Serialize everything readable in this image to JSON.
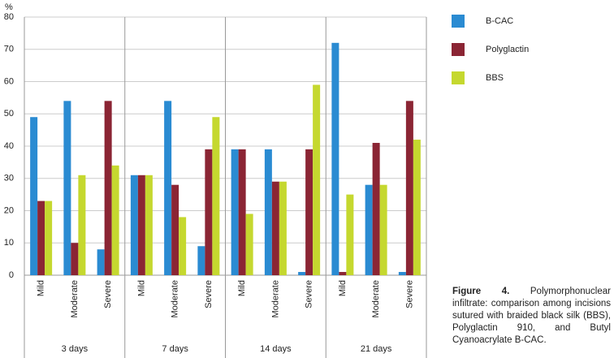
{
  "chart_data": {
    "type": "bar",
    "y_label": "%",
    "categories": [
      "Mild",
      "Moderate",
      "Severe",
      "Mild",
      "Moderate",
      "Severe",
      "Mild",
      "Moderate",
      "Severe",
      "Mild",
      "Moderate",
      "Severe"
    ],
    "groups": [
      "3 days",
      "7 days",
      "14 days",
      "21 days"
    ],
    "series": [
      {
        "name": "B-CAC",
        "color": "#2a8bd2",
        "values": [
          49,
          54,
          8,
          31,
          54,
          9,
          39,
          39,
          1,
          72,
          28,
          1
        ]
      },
      {
        "name": "Polyglactin",
        "color": "#8b2534",
        "values": [
          23,
          10,
          54,
          31,
          28,
          39,
          39,
          29,
          39,
          1,
          41,
          54
        ]
      },
      {
        "name": "BBS",
        "color": "#c5d82f",
        "values": [
          23,
          31,
          34,
          31,
          18,
          49,
          19,
          29,
          59,
          25,
          28,
          42
        ]
      }
    ],
    "ylim": [
      0,
      80
    ],
    "yticks": [
      0,
      10,
      20,
      30,
      40,
      50,
      60,
      70,
      80
    ],
    "grid": true,
    "caption_label": "Figure 4.",
    "caption_text": "Polymorphonuclear infiltrate: comparison among incisions sutured with braided black silk (BBS), Polyglactin 910, and Butyl Cyanoacrylate B-CAC."
  }
}
